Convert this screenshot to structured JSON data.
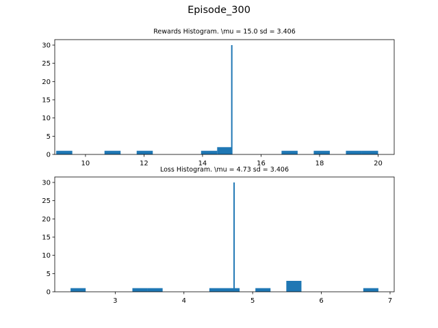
{
  "figure": {
    "suptitle": "Episode_300"
  },
  "chart_data": [
    {
      "type": "bar",
      "title": "Rewards Histogram. \\mu = 15.0 sd = 3.406",
      "xlabel": "",
      "ylabel": "",
      "xlim": [
        8.95,
        20.55
      ],
      "ylim": [
        0,
        31.5
      ],
      "xticks": [
        10,
        12,
        14,
        16,
        18,
        20
      ],
      "yticks": [
        0,
        5,
        10,
        15,
        20,
        25,
        30
      ],
      "grid": false,
      "bar_color": "#1f77b4",
      "bins": [
        {
          "x0": 9.0,
          "x1": 9.55,
          "count": 1
        },
        {
          "x0": 10.65,
          "x1": 11.2,
          "count": 1
        },
        {
          "x0": 11.75,
          "x1": 12.3,
          "count": 1
        },
        {
          "x0": 13.95,
          "x1": 14.5,
          "count": 1
        },
        {
          "x0": 14.5,
          "x1": 15.0,
          "count": 2
        },
        {
          "x0": 16.7,
          "x1": 17.25,
          "count": 1
        },
        {
          "x0": 17.8,
          "x1": 18.35,
          "count": 1
        },
        {
          "x0": 18.9,
          "x1": 19.45,
          "count": 1
        },
        {
          "x0": 19.45,
          "x1": 20.0,
          "count": 1
        }
      ],
      "spike": {
        "x": 15.0,
        "count": 30
      }
    },
    {
      "type": "bar",
      "title": "Loss Histogram. \\mu = 4.73 sd = 3.406",
      "xlabel": "",
      "ylabel": "",
      "xlim": [
        2.12,
        7.06
      ],
      "ylim": [
        0,
        31.5
      ],
      "xticks": [
        3,
        4,
        5,
        6,
        7
      ],
      "yticks": [
        0,
        5,
        10,
        15,
        20,
        25,
        30
      ],
      "grid": false,
      "bar_color": "#1f77b4",
      "bins": [
        {
          "x0": 2.35,
          "x1": 2.57,
          "count": 1
        },
        {
          "x0": 3.25,
          "x1": 3.47,
          "count": 1
        },
        {
          "x0": 3.47,
          "x1": 3.69,
          "count": 1
        },
        {
          "x0": 4.37,
          "x1": 4.59,
          "count": 1
        },
        {
          "x0": 4.59,
          "x1": 4.81,
          "count": 1
        },
        {
          "x0": 5.04,
          "x1": 5.26,
          "count": 1
        },
        {
          "x0": 5.49,
          "x1": 5.71,
          "count": 3
        },
        {
          "x0": 6.61,
          "x1": 6.83,
          "count": 1
        }
      ],
      "spike": {
        "x": 4.73,
        "count": 30
      }
    }
  ]
}
